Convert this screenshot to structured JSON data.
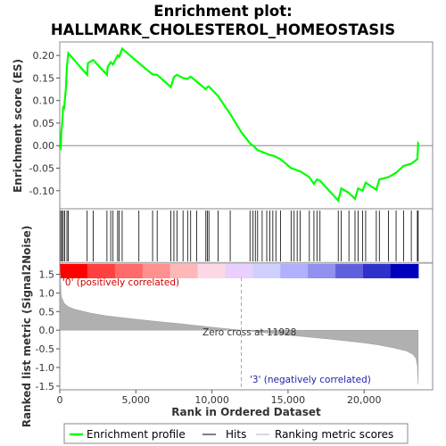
{
  "chart_data": {
    "type": "line",
    "title_line1": "Enrichment plot:",
    "title_line2": "HALLMARK_CHOLESTEROL_HOMEOSTASIS",
    "xlabel": "Rank in Ordered Dataset",
    "ylabel_top": "Enrichment score (ES)",
    "ylabel_bottom": "Ranked list metric (Signal2Noise)",
    "xlim": [
      0,
      24500
    ],
    "x_ticks": [
      0,
      5000,
      10000,
      15000,
      20000
    ],
    "x_tick_labels": [
      "0",
      "5,000",
      "10,000",
      "15,000",
      "20,000"
    ],
    "es_ylim": [
      -0.14,
      0.23
    ],
    "es_ticks": [
      -0.1,
      -0.05,
      0.0,
      0.05,
      0.1,
      0.15,
      0.2
    ],
    "es_tick_labels": [
      "-0.10",
      "-0.05",
      "0.00",
      "0.05",
      "0.10",
      "0.15",
      "0.20"
    ],
    "metric_ylim": [
      -1.6,
      1.8
    ],
    "metric_ticks": [
      -1.5,
      -1.0,
      -0.5,
      0.0,
      0.5,
      1.0,
      1.5
    ],
    "metric_tick_labels": [
      "-1.5",
      "-1.0",
      "-0.5",
      "0.0",
      "0.5",
      "1.0",
      "1.5"
    ],
    "hit_ranks": [
      60,
      150,
      230,
      330,
      470,
      560,
      1800,
      2200,
      3100,
      3350,
      3500,
      3800,
      3900,
      4100,
      5200,
      6100,
      6400,
      7300,
      7500,
      7700,
      8100,
      8400,
      8600,
      9000,
      9600,
      9700,
      9800,
      10400,
      11200,
      12500,
      12700,
      12850,
      13000,
      13300,
      13600,
      13800,
      14000,
      14200,
      14500,
      15200,
      15400,
      15600,
      15800,
      16400,
      16700,
      16900,
      17100,
      18300,
      18500,
      19000,
      19400,
      19600,
      19900,
      20100,
      20800,
      21000,
      21600,
      22100,
      22600,
      23100,
      23500,
      23550
    ],
    "es_series": {
      "name": "Enrichment profile",
      "color": "#00ff00",
      "x": [
        0,
        60,
        100,
        150,
        200,
        230,
        280,
        330,
        400,
        470,
        560,
        1800,
        1850,
        2200,
        3100,
        3150,
        3350,
        3500,
        3800,
        3900,
        4100,
        5200,
        6100,
        6400,
        7300,
        7500,
        7700,
        8100,
        8400,
        8600,
        9000,
        9600,
        9700,
        9800,
        10400,
        11200,
        11928,
        12500,
        12700,
        12850,
        13000,
        13300,
        13600,
        13800,
        14000,
        14200,
        14500,
        15200,
        15400,
        15600,
        15800,
        16400,
        16700,
        16900,
        17100,
        18300,
        18500,
        19000,
        19400,
        19600,
        19900,
        20100,
        20800,
        21000,
        21600,
        22100,
        22600,
        23100,
        23500,
        23550,
        23600
      ],
      "y": [
        0.0,
        -0.01,
        0.03,
        0.045,
        0.07,
        0.088,
        0.08,
        0.1,
        0.125,
        0.175,
        0.205,
        0.157,
        0.183,
        0.19,
        0.157,
        0.175,
        0.185,
        0.18,
        0.2,
        0.197,
        0.215,
        0.183,
        0.158,
        0.157,
        0.13,
        0.152,
        0.157,
        0.15,
        0.148,
        0.153,
        0.142,
        0.125,
        0.13,
        0.131,
        0.11,
        0.07,
        0.03,
        0.005,
        0.0,
        -0.005,
        -0.01,
        -0.014,
        -0.018,
        -0.021,
        -0.022,
        -0.025,
        -0.03,
        -0.05,
        -0.052,
        -0.055,
        -0.057,
        -0.07,
        -0.085,
        -0.075,
        -0.078,
        -0.122,
        -0.095,
        -0.105,
        -0.118,
        -0.095,
        -0.1,
        -0.082,
        -0.098,
        -0.075,
        -0.07,
        -0.06,
        -0.045,
        -0.04,
        -0.03,
        0.005,
        0.003
      ]
    },
    "metric_curve": {
      "x": [
        0,
        100,
        300,
        600,
        1000,
        2000,
        3000,
        4000,
        6000,
        8000,
        10000,
        11928,
        14000,
        16000,
        18000,
        20000,
        21000,
        22000,
        22800,
        23200,
        23400,
        23500,
        23550
      ],
      "y": [
        1.75,
        0.9,
        0.72,
        0.62,
        0.56,
        0.46,
        0.39,
        0.34,
        0.25,
        0.17,
        0.08,
        0.0,
        -0.09,
        -0.17,
        -0.25,
        -0.34,
        -0.4,
        -0.48,
        -0.56,
        -0.65,
        -0.75,
        -0.95,
        -1.45
      ]
    },
    "zero_cross_label": "Zero cross at 11928",
    "zero_cross_rank": 11928,
    "positive_label": "'0' (positively correlated)",
    "negative_label": "'3' (negatively correlated)",
    "positive_color": "#ff0000",
    "negative_color": "#3333cc",
    "legend": [
      {
        "label": "Enrichment profile",
        "color": "#00ff00"
      },
      {
        "label": "Hits",
        "color": "#000000"
      },
      {
        "label": "Ranking metric scores",
        "color": "#b0b0b0"
      }
    ],
    "heatmap_colors": [
      "#ff0000",
      "#ff4040",
      "#ff6a6a",
      "#ff9090",
      "#ffb8b8",
      "#ffd8e8",
      "#e8d0ff",
      "#d0d0ff",
      "#b0b0ff",
      "#9090ee",
      "#6060dd",
      "#3030cc",
      "#0000bb"
    ]
  }
}
